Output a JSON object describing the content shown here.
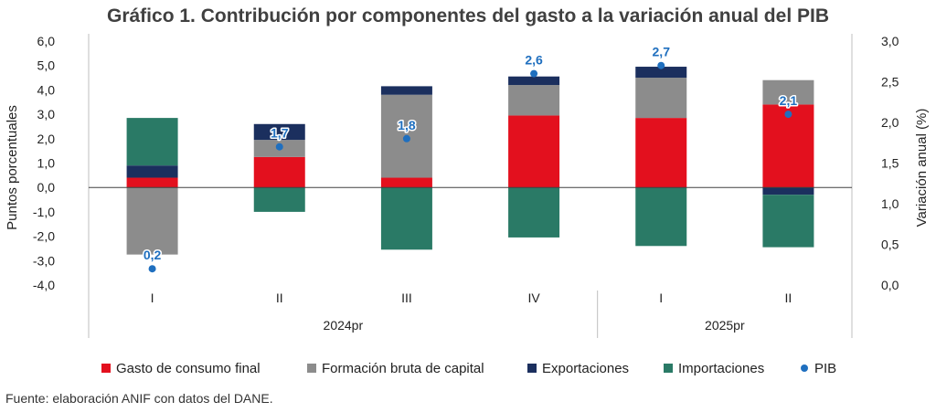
{
  "chart_data": {
    "type": "bar",
    "title": "Gráfico 1. Contribución por componentes del gasto a la variación anual del PIB",
    "ylabel": "Puntos porcentuales",
    "y2label": "Variación anual (%)",
    "ylim": [
      -4.0,
      6.0
    ],
    "y2lim": [
      0.0,
      3.0
    ],
    "yticks": [
      "6,0",
      "5,0",
      "4,0",
      "3,0",
      "2,0",
      "1,0",
      "0,0",
      "-1,0",
      "-2,0",
      "-3,0",
      "-4,0"
    ],
    "y2ticks": [
      "3,0",
      "2,5",
      "2,0",
      "1,5",
      "1,0",
      "0,5",
      "0,0"
    ],
    "categories": [
      "I",
      "II",
      "III",
      "IV",
      "I",
      "II"
    ],
    "groups": [
      {
        "label": "2024pr",
        "span": [
          0,
          3
        ]
      },
      {
        "label": "2025pr",
        "span": [
          4,
          5
        ]
      }
    ],
    "series": [
      {
        "name": "Gasto de consumo final",
        "color": "#e3101e",
        "values": [
          0.4,
          1.25,
          0.4,
          2.95,
          2.85,
          3.4
        ]
      },
      {
        "name": "Formación bruta de capital",
        "color": "#8c8c8c",
        "values": [
          -2.75,
          0.7,
          3.4,
          1.25,
          1.65,
          1.0
        ]
      },
      {
        "name": "Exportaciones",
        "color": "#1b2f5e",
        "values": [
          0.5,
          0.65,
          0.35,
          0.35,
          0.45,
          -0.3
        ]
      },
      {
        "name": "Importaciones",
        "color": "#2a7a66",
        "values": [
          1.95,
          -1.0,
          -2.55,
          -2.05,
          -2.4,
          -2.15
        ]
      }
    ],
    "line_series": {
      "name": "PIB",
      "color": "#1f6fbf",
      "values": [
        0.2,
        1.7,
        1.8,
        2.6,
        2.7,
        2.1
      ],
      "labels": [
        "0,2",
        "1,7",
        "1,8",
        "2,6",
        "2,7",
        "2,1"
      ]
    },
    "legend_position": "bottom"
  },
  "source": "Fuente: elaboración ANIF con datos del DANE."
}
